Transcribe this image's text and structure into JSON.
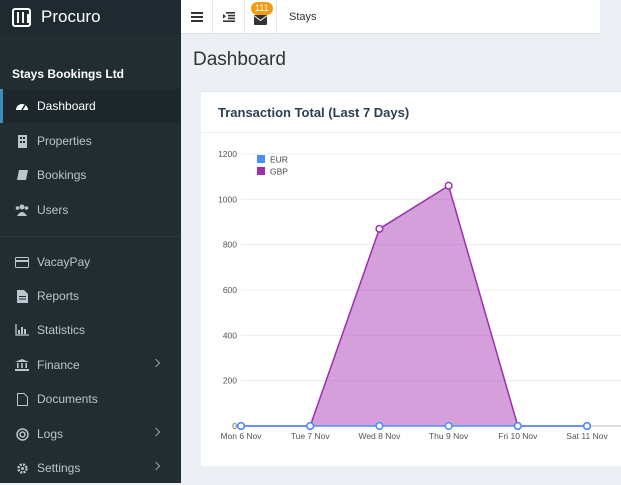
{
  "brand": {
    "name": "Procuro"
  },
  "account": {
    "name": "Stays Bookings Ltd"
  },
  "sidebar": {
    "items": [
      {
        "label": "Dashboard",
        "icon": "dashboard-icon",
        "active": true,
        "has_arrow": false
      },
      {
        "label": "Properties",
        "icon": "building-icon",
        "has_arrow": false
      },
      {
        "label": "Bookings",
        "icon": "book-icon",
        "has_arrow": false
      },
      {
        "label": "Users",
        "icon": "users-icon",
        "has_arrow": false
      },
      {
        "label": "VacayPay",
        "icon": "credit-card-icon",
        "has_arrow": false
      },
      {
        "label": "Reports",
        "icon": "file-icon",
        "has_arrow": false
      },
      {
        "label": "Statistics",
        "icon": "bar-chart-icon",
        "has_arrow": false
      },
      {
        "label": "Finance",
        "icon": "bank-icon",
        "has_arrow": true
      },
      {
        "label": "Documents",
        "icon": "document-icon",
        "has_arrow": false
      },
      {
        "label": "Logs",
        "icon": "life-ring-icon",
        "has_arrow": true
      },
      {
        "label": "Settings",
        "icon": "gear-icon",
        "has_arrow": true
      }
    ]
  },
  "topbar": {
    "mail_count": "111",
    "link": "Stays"
  },
  "page": {
    "title": "Dashboard"
  },
  "card": {
    "title": "Transaction Total (Last 7 Days)"
  },
  "colors": {
    "accent": "#3c8dbc",
    "eur": "#4b8ef6",
    "gbp": "#9b2fae",
    "badge": "#f39c12",
    "sidebar": "#222d32"
  },
  "chart_data": {
    "type": "area",
    "categories": [
      "Mon 6 Nov",
      "Tue 7 Nov",
      "Wed 8 Nov",
      "Thu 9 Nov",
      "Fri 10 Nov",
      "Sat 11 Nov"
    ],
    "series": [
      {
        "name": "EUR",
        "values": [
          0,
          0,
          0,
          0,
          0,
          0
        ]
      },
      {
        "name": "GBP",
        "values": [
          0,
          0,
          870,
          1060,
          0,
          0
        ]
      }
    ],
    "yticks": [
      "0",
      "200",
      "400",
      "600",
      "800",
      "1000",
      "1200"
    ],
    "ylim": [
      0,
      1200
    ],
    "legend": "top-left",
    "grid": true
  }
}
